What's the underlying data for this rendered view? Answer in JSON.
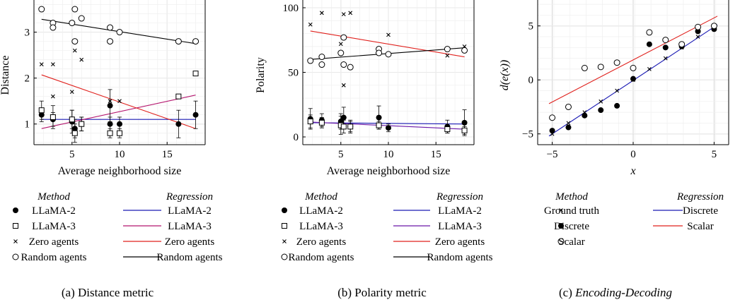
{
  "chart_data": [
    {
      "type": "scatter",
      "caption_prefix": "(a)",
      "caption": "Distance metric",
      "xlabel": "Average neighborhood size",
      "ylabel": "Distance",
      "xlim": [
        1,
        19
      ],
      "ylim": [
        0.55,
        3.7
      ],
      "xticks": [
        5,
        10,
        15
      ],
      "yticks": [
        1,
        2,
        3
      ],
      "grid": true,
      "legend": {
        "method_title": "Method",
        "regression_title": "Regression",
        "method_entries": [
          {
            "label": "LLaMA-2",
            "marker": "filled-circle"
          },
          {
            "label": "LLaMA-3",
            "marker": "open-square"
          },
          {
            "label": "Zero agents",
            "marker": "cross"
          },
          {
            "label": "Random agents",
            "marker": "open-circle"
          }
        ],
        "regression_entries": [
          {
            "label": "LLaMA-2",
            "color": "#1a1ab4"
          },
          {
            "label": "LLaMA-3",
            "color": "#b4156e"
          },
          {
            "label": "Zero agents",
            "color": "#e0201c"
          },
          {
            "label": "Random agents",
            "color": "#000000"
          }
        ]
      },
      "series": [
        {
          "legend_ref": "LLaMA-2",
          "marker": "filled-circle",
          "x": [
            1.8,
            3,
            5,
            5.3,
            6,
            9,
            9,
            10,
            16.2,
            18
          ],
          "y": [
            1.2,
            1.1,
            1.05,
            0.9,
            1.0,
            1.4,
            1.0,
            1.0,
            1.0,
            1.2
          ],
          "err": [
            0.15,
            0.15,
            0.25,
            0.2,
            0.15,
            0.35,
            0.15,
            0.15,
            0.3,
            0.3
          ]
        },
        {
          "legend_ref": "LLaMA-3",
          "marker": "open-square",
          "x": [
            1.8,
            3,
            5,
            5.3,
            6,
            9,
            10,
            16.2,
            18
          ],
          "y": [
            1.3,
            1.15,
            1.1,
            0.8,
            1.0,
            0.8,
            0.8,
            1.6,
            2.1
          ],
          "err": [
            0.2,
            0.25,
            0.2,
            0.2,
            0.15,
            0.1,
            0.1,
            0,
            0
          ]
        },
        {
          "legend_ref": "Zero agents",
          "marker": "cross",
          "x": [
            1.8,
            3,
            3,
            5,
            5.3,
            6,
            9,
            10
          ],
          "y": [
            2.3,
            2.3,
            1.6,
            1.7,
            2.6,
            2.4,
            1.5,
            1.5
          ]
        },
        {
          "legend_ref": "Random agents",
          "marker": "open-circle",
          "x": [
            1.8,
            3,
            3,
            5,
            5.3,
            5.3,
            6,
            9,
            9,
            10,
            16.2,
            18
          ],
          "y": [
            3.5,
            3.2,
            3.1,
            3.2,
            3.5,
            2.8,
            3.3,
            3.1,
            2.8,
            3.0,
            2.8,
            2.8
          ]
        }
      ],
      "regressions": [
        {
          "legend_ref": "LLaMA-2",
          "x": [
            1.8,
            18
          ],
          "y": [
            1.1,
            1.1
          ]
        },
        {
          "legend_ref": "LLaMA-3",
          "x": [
            1.8,
            18
          ],
          "y": [
            0.9,
            1.63
          ]
        },
        {
          "legend_ref": "Zero agents",
          "x": [
            1.8,
            18
          ],
          "y": [
            2.07,
            0.9
          ]
        },
        {
          "legend_ref": "Random agents",
          "x": [
            1.8,
            18
          ],
          "y": [
            3.28,
            2.75
          ]
        }
      ]
    },
    {
      "type": "scatter",
      "caption_prefix": "(b)",
      "caption": "Polarity metric",
      "xlabel": "Average neighborhood size",
      "ylabel": "Polarity",
      "xlim": [
        1,
        19
      ],
      "ylim": [
        -6,
        106
      ],
      "xticks": [
        5,
        10,
        15
      ],
      "yticks": [
        0,
        50,
        100
      ],
      "grid": true,
      "legend": {
        "method_title": "Method",
        "regression_title": "Regression",
        "method_entries": [
          {
            "label": "LLaMA-2",
            "marker": "filled-circle"
          },
          {
            "label": "LLaMA-3",
            "marker": "open-square"
          },
          {
            "label": "Zero agents",
            "marker": "cross"
          },
          {
            "label": "Random agents",
            "marker": "open-circle"
          }
        ],
        "regression_entries": [
          {
            "label": "LLaMA-2",
            "color": "#1a1ab4"
          },
          {
            "label": "LLaMA-3",
            "color": "#6a16a8"
          },
          {
            "label": "Zero agents",
            "color": "#e0201c"
          },
          {
            "label": "Random agents",
            "color": "#000000"
          }
        ]
      },
      "series": [
        {
          "legend_ref": "LLaMA-2",
          "marker": "filled-circle",
          "x": [
            1.8,
            3,
            5,
            5.3,
            6,
            9,
            10,
            16.2,
            18
          ],
          "y": [
            14,
            13,
            12,
            15,
            8,
            15,
            7,
            8,
            11
          ],
          "err": [
            8,
            5,
            6,
            8,
            5,
            9,
            3,
            5,
            10
          ]
        },
        {
          "legend_ref": "LLaMA-3",
          "marker": "open-square",
          "x": [
            1.8,
            3,
            5,
            5.3,
            6,
            9,
            16.2,
            18
          ],
          "y": [
            12,
            11,
            9,
            8,
            8,
            9,
            6,
            5
          ],
          "err": [
            5,
            4,
            7,
            5,
            4,
            3,
            3,
            3
          ]
        },
        {
          "legend_ref": "Zero agents",
          "marker": "cross",
          "x": [
            1.8,
            3,
            5,
            5.3,
            5.3,
            6,
            10,
            16.2,
            18
          ],
          "y": [
            87,
            96,
            72,
            95,
            40,
            96,
            79,
            63,
            70
          ]
        },
        {
          "legend_ref": "Random agents",
          "marker": "open-circle",
          "x": [
            1.8,
            3,
            3,
            5,
            5.3,
            5.3,
            6,
            9,
            9,
            10,
            16.2,
            18
          ],
          "y": [
            59,
            62,
            56,
            65,
            77,
            56,
            54,
            68,
            65,
            64,
            68,
            67
          ]
        }
      ],
      "regressions": [
        {
          "legend_ref": "LLaMA-2",
          "x": [
            1.8,
            18
          ],
          "y": [
            11,
            10
          ]
        },
        {
          "legend_ref": "LLaMA-3",
          "x": [
            1.8,
            18
          ],
          "y": [
            11.5,
            6
          ]
        },
        {
          "legend_ref": "Zero agents",
          "x": [
            1.8,
            18
          ],
          "y": [
            82,
            62
          ]
        },
        {
          "legend_ref": "Random agents",
          "x": [
            1.8,
            18
          ],
          "y": [
            60,
            69
          ]
        }
      ]
    },
    {
      "type": "scatter",
      "caption_prefix": "(c)",
      "caption": "Encoding-Decoding",
      "caption_italic": true,
      "xlabel": "x",
      "ylabel": "d(e(x))",
      "label_italic": true,
      "xlim": [
        -5.9,
        5.9
      ],
      "ylim": [
        -6.0,
        7.4
      ],
      "xticks": [
        -5,
        0,
        5
      ],
      "yticks": [
        -5,
        0,
        5
      ],
      "grid": true,
      "legend": {
        "method_title": "Method",
        "regression_title": "Regression",
        "method_entries": [
          {
            "label": "Ground truth",
            "marker": "cross"
          },
          {
            "label": "Discrete",
            "marker": "filled-circle"
          },
          {
            "label": "Scalar",
            "marker": "open-circle"
          }
        ],
        "regression_entries": [
          {
            "label": "Discrete",
            "color": "#1a1ab4"
          },
          {
            "label": "Scalar",
            "color": "#e0201c"
          }
        ]
      },
      "series": [
        {
          "legend_ref": "Ground truth",
          "marker": "cross",
          "x": [
            -5,
            -4,
            -3,
            -2,
            -1,
            0,
            1,
            2,
            3,
            4,
            5
          ],
          "y": [
            -5,
            -4,
            -3,
            -2,
            -1,
            0,
            1,
            2,
            3,
            4,
            5
          ]
        },
        {
          "legend_ref": "Discrete",
          "marker": "filled-circle",
          "x": [
            -5,
            -4,
            -3,
            -2,
            -1,
            0,
            1,
            2,
            3,
            4,
            5
          ],
          "y": [
            -4.7,
            -4.4,
            -3.3,
            -2.8,
            -2.4,
            0.1,
            3.3,
            3.0,
            3.1,
            4.5,
            4.7
          ]
        },
        {
          "legend_ref": "Scalar",
          "marker": "open-circle",
          "x": [
            -5,
            -4,
            -3,
            -2,
            -1,
            0,
            1,
            2,
            3,
            4,
            5
          ],
          "y": [
            -3.5,
            -2.5,
            1.1,
            1.2,
            1.6,
            1.1,
            4.4,
            3.7,
            3.3,
            4.9,
            5.0
          ]
        }
      ],
      "regressions": [
        {
          "legend_ref": "Discrete",
          "x": [
            -5.2,
            5.2
          ],
          "y": [
            -5.2,
            5.1
          ]
        },
        {
          "legend_ref": "Scalar",
          "x": [
            -5.2,
            5.2
          ],
          "y": [
            -2.2,
            5.9
          ]
        }
      ]
    }
  ]
}
